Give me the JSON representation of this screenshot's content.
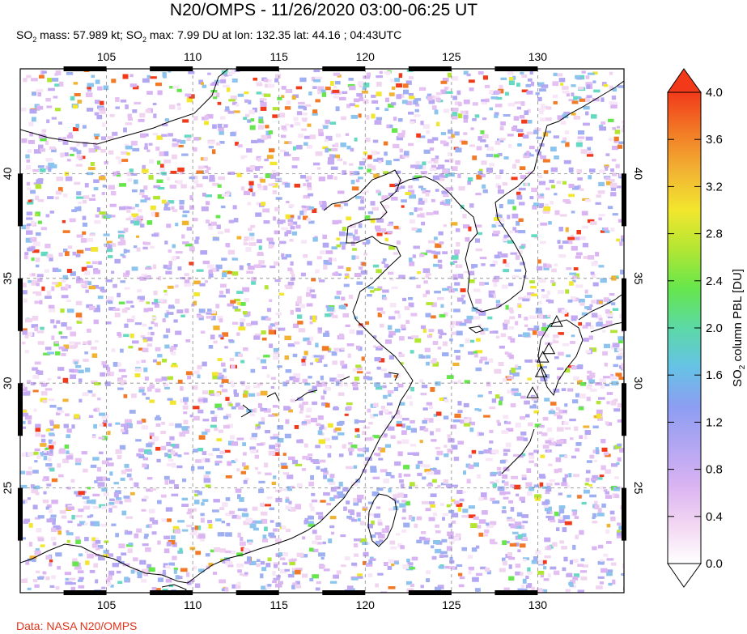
{
  "header": {
    "title": "N20/OMPS - 11/26/2020 03:00-06:25 UT",
    "subtitle_so2_mass_label": "SO",
    "subtitle_so2_mass_sub": "2",
    "subtitle_mass_text": " mass: 57.989 kt; SO",
    "subtitle_max_sub": "2",
    "subtitle_rest": " max: 7.99 DU at lon: 132.35 lat: 44.16 ; 04:43UTC"
  },
  "footer": {
    "credit": "Data: NASA N20/OMPS"
  },
  "map": {
    "lon_min": 100,
    "lon_max": 135,
    "lat_min": 20,
    "lat_max": 45,
    "lon_ticks": [
      {
        "value": 105,
        "label": "105"
      },
      {
        "value": 110,
        "label": "110"
      },
      {
        "value": 115,
        "label": "115"
      },
      {
        "value": 120,
        "label": "120"
      },
      {
        "value": 125,
        "label": "125"
      },
      {
        "value": 130,
        "label": "130"
      }
    ],
    "lat_ticks": [
      {
        "value": 25,
        "label": "25"
      },
      {
        "value": 30,
        "label": "30"
      },
      {
        "value": 35,
        "label": "35"
      },
      {
        "value": 40,
        "label": "40"
      }
    ],
    "volcanoes": [
      [
        130.65,
        31.6
      ],
      [
        130.3,
        31.2
      ],
      [
        130.2,
        30.5
      ],
      [
        129.7,
        29.5
      ],
      [
        131.1,
        32.9
      ]
    ],
    "max_location": {
      "lon": 132.35,
      "lat": 44.16
    }
  },
  "colorbar": {
    "title": "SO2 column PBL [DU]",
    "title_main": "SO",
    "title_sub": "2",
    "title_rest": " column PBL [DU]",
    "min": 0.0,
    "max": 4.0,
    "tick_labels": [
      "0.0",
      "0.4",
      "0.8",
      "1.2",
      "1.6",
      "2.0",
      "2.4",
      "2.8",
      "3.2",
      "3.6",
      "4.0"
    ],
    "colors": [
      "#ffffff",
      "#f2d6f2",
      "#d9b3f2",
      "#b3a6f2",
      "#8c9ef2",
      "#66c2e6",
      "#5cd9a6",
      "#66e64d",
      "#b3e633",
      "#f2e62e",
      "#f2b333",
      "#f27a26",
      "#f23a1a"
    ]
  }
}
